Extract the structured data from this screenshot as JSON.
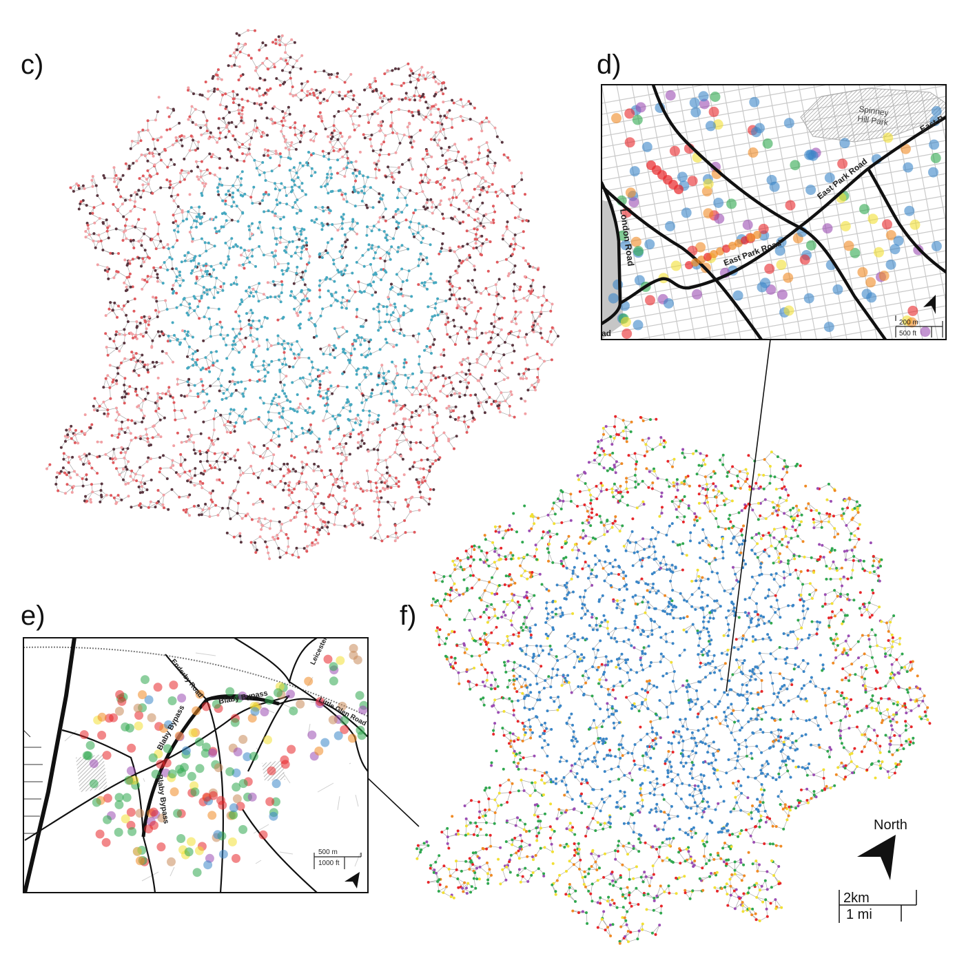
{
  "panels": {
    "c": {
      "label": "c)",
      "palette": [
        "#46a9c1",
        "#5a3640",
        "#e05a5e",
        "#f2a0a4"
      ]
    },
    "d": {
      "label": "d)",
      "roads": [
        "London Road",
        "East Park Road",
        "East Park Road",
        "East Park Road",
        "East P"
      ],
      "park": "Spinney Hill Park",
      "scale": [
        "200 m",
        "500 ft"
      ],
      "edge_text": "ad"
    },
    "e": {
      "label": "e)",
      "roads": [
        "Blaby Bypass",
        "Blaby Bypass",
        "Blaby Bypass",
        "Enderby Road",
        "Leicester R",
        "Little Glen Road"
      ],
      "scale": [
        "500 m",
        "1000 ft"
      ]
    },
    "f": {
      "label": "f)",
      "north": "North",
      "scale": [
        "2km",
        "1 mi"
      ],
      "palette": [
        "#3a86c8",
        "#2fa84f",
        "#e8262a",
        "#9b4db3",
        "#f2e034",
        "#f08a24"
      ]
    }
  }
}
